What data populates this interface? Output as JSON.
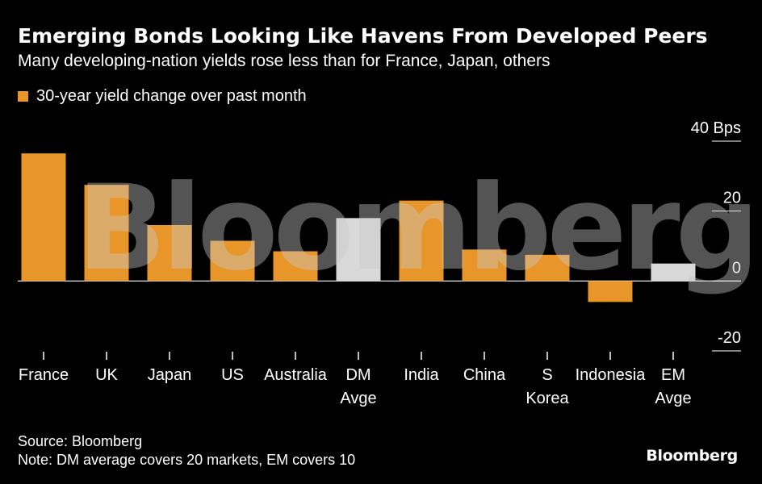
{
  "header": {
    "title": "Emerging Bonds Looking Like Havens From Developed Peers",
    "subtitle": "Many developing-nation yields rose less than for France, Japan, others"
  },
  "legend": {
    "label": "30-year yield change over past month"
  },
  "footer": {
    "source": "Source: Bloomberg",
    "note": "Note: DM average covers 20 markets, EM covers 10"
  },
  "brand": "Bloomberg",
  "watermark": "Bloomberg",
  "colors": {
    "bar": "#e8962a",
    "average": "#d9d9d9",
    "background": "#000000",
    "text": "#ffffff"
  },
  "chart_data": {
    "type": "bar",
    "categories": [
      "France",
      "UK",
      "Japan",
      "US",
      "Australia",
      "DM Avge",
      "India",
      "China",
      "S Korea",
      "Indonesia",
      "EM Avge"
    ],
    "category_lines": [
      [
        "France"
      ],
      [
        "UK"
      ],
      [
        "Japan"
      ],
      [
        "US"
      ],
      [
        "Australia"
      ],
      [
        "DM",
        "Avge"
      ],
      [
        "India"
      ],
      [
        "China"
      ],
      [
        "S",
        "Korea"
      ],
      [
        "Indonesia"
      ],
      [
        "EM",
        "Avge"
      ]
    ],
    "series": [
      {
        "name": "30-year yield change over past month",
        "values": [
          36.5,
          27.5,
          16,
          11.5,
          8.5,
          18,
          23,
          9,
          7.5,
          -6,
          5
        ]
      }
    ],
    "highlight": [
      false,
      false,
      false,
      false,
      false,
      true,
      false,
      false,
      false,
      false,
      true
    ],
    "ylim": [
      -20,
      40
    ],
    "yticks": [
      40,
      20,
      0,
      -20
    ],
    "ytick_labels": [
      "40  Bps",
      "20",
      "0",
      "-20"
    ],
    "ylabel": "Bps",
    "xlabel": ""
  }
}
